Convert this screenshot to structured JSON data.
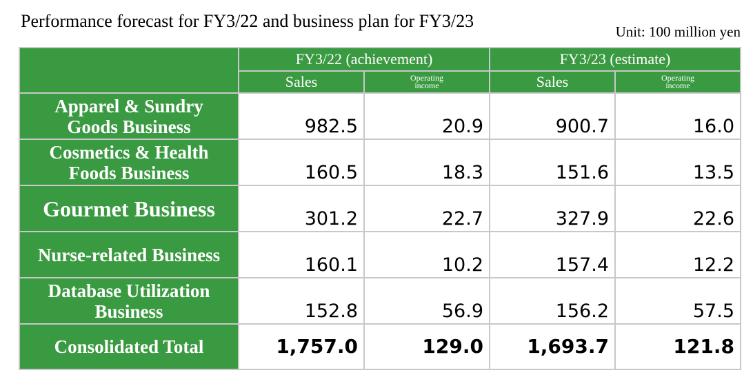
{
  "title": "Performance forecast for FY3/22 and business plan for FY3/23",
  "unit": "Unit: 100 million yen",
  "columns": {
    "groups": [
      "FY3/22 (achievement)",
      "FY3/23 (estimate)"
    ],
    "sales": "Sales",
    "operating_1": "Operating",
    "operating_2": "income"
  },
  "rows": [
    {
      "label_1": "Apparel & Sundry",
      "label_2": "Goods Business",
      "values": [
        "982.5",
        "20.9",
        "900.7",
        "16.0"
      ]
    },
    {
      "label_1": "Cosmetics & Health",
      "label_2": "Foods Business",
      "values": [
        "160.5",
        "18.3",
        "151.6",
        "13.5"
      ]
    },
    {
      "label_1": "Gourmet Business",
      "values": [
        "301.2",
        "22.7",
        "327.9",
        "22.6"
      ]
    },
    {
      "label_1": "Nurse-related Business",
      "values": [
        "160.1",
        "10.2",
        "157.4",
        "12.2"
      ]
    },
    {
      "label_1": "Database Utilization",
      "label_2": "Business",
      "values": [
        "152.8",
        "56.9",
        "156.2",
        "57.5"
      ]
    },
    {
      "label_1": "Consolidated Total",
      "values": [
        "1,757.0",
        "129.0",
        "1,693.7",
        "121.8"
      ]
    }
  ],
  "colors": {
    "header_green": "#3a9a41",
    "grid": "#c8c8c8"
  }
}
